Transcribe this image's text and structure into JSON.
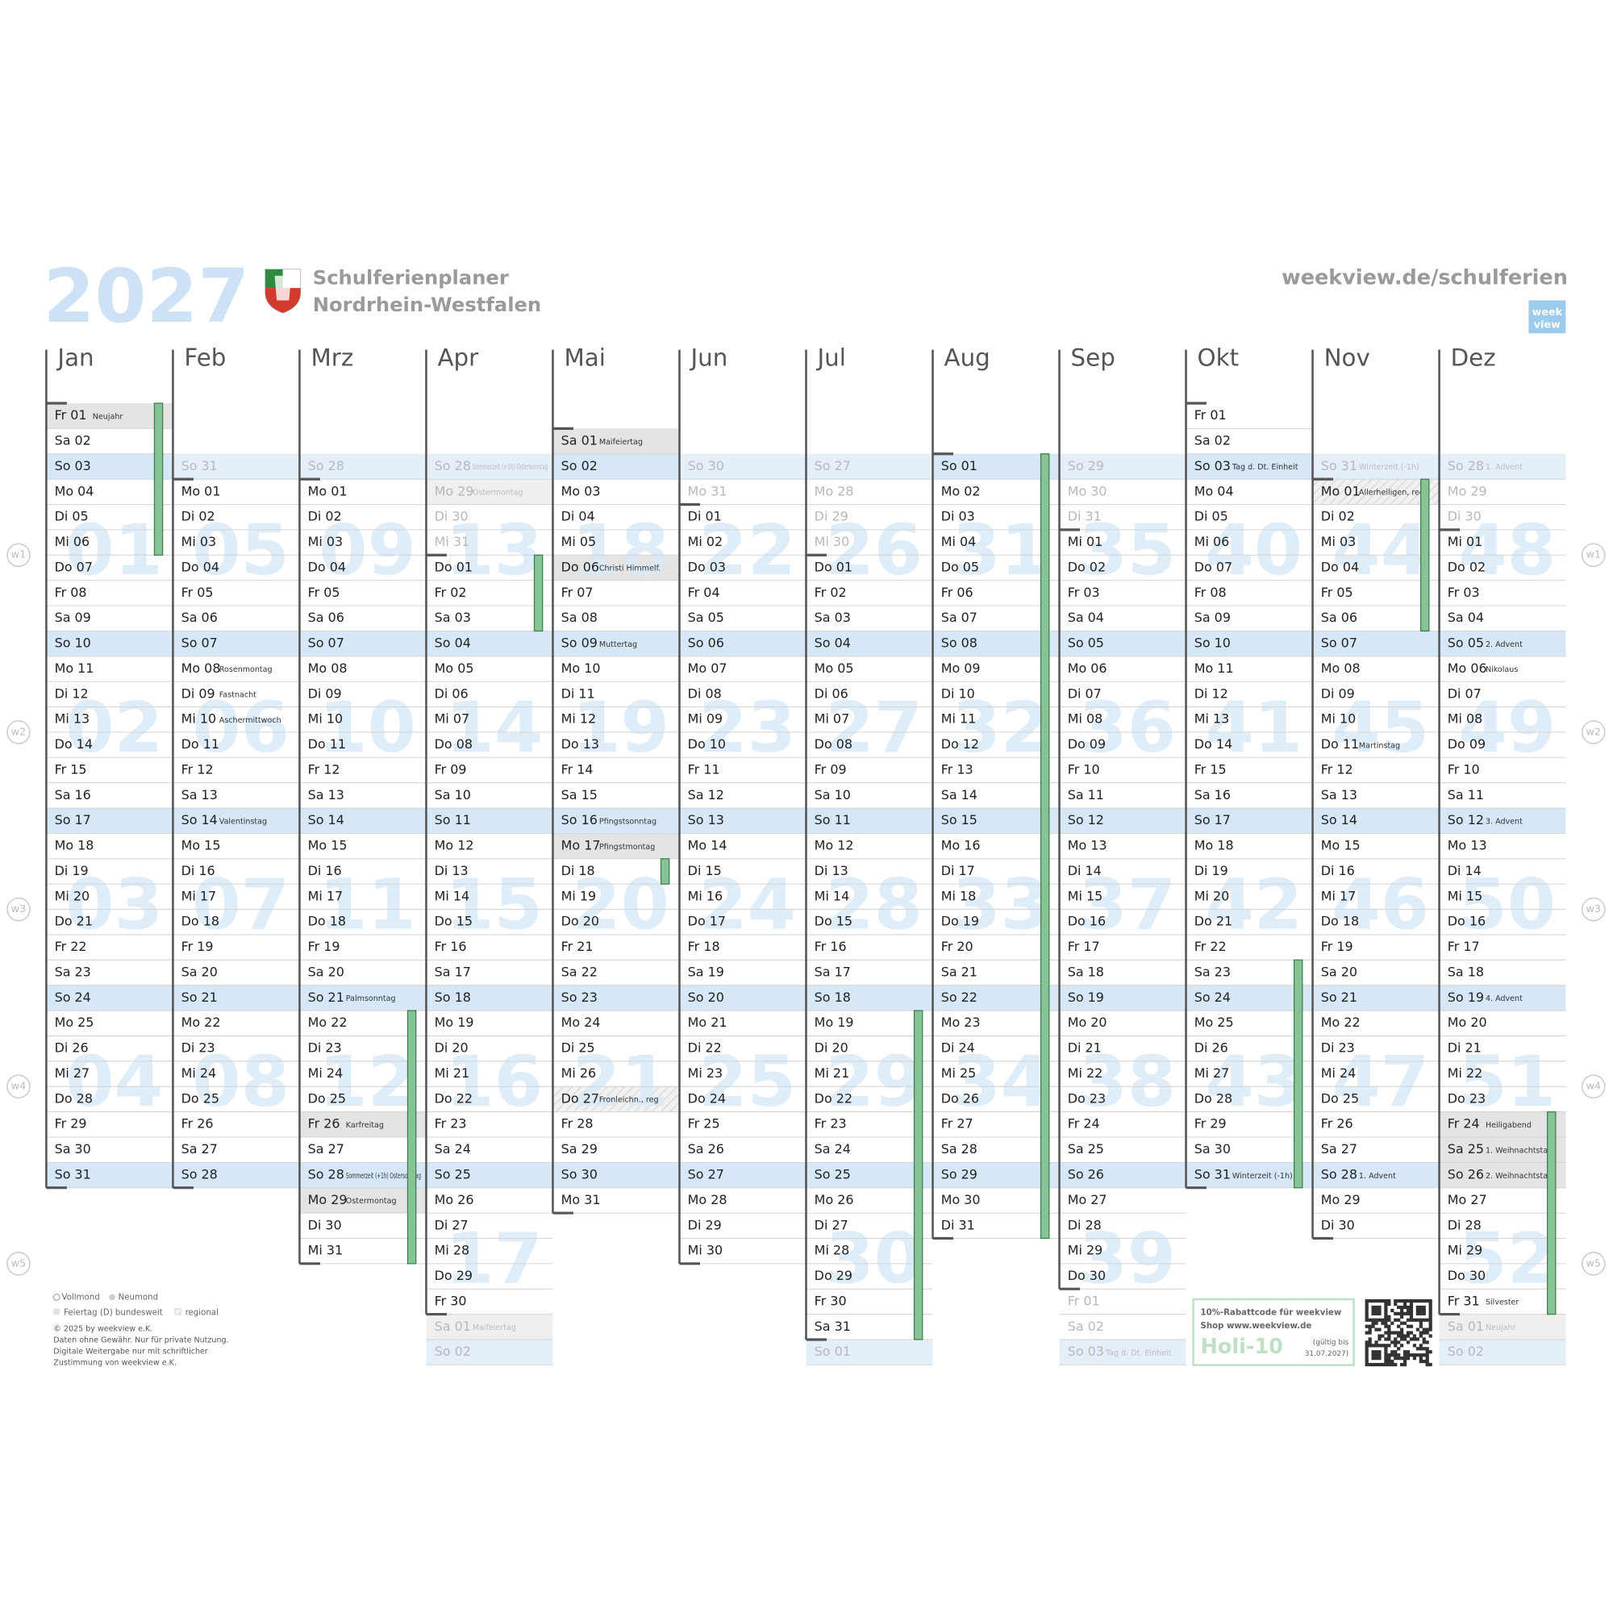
{
  "header": {
    "year": "2027",
    "title": "Schulferienplaner",
    "subtitle": "Nordrhein-Westfalen",
    "url": "weekview.de/schulferien",
    "logo": [
      "week",
      "view"
    ]
  },
  "side_labels": [
    "w1",
    "w2",
    "w3",
    "w4",
    "w5"
  ],
  "months": [
    {
      "name": "Jan",
      "before": [],
      "after": [],
      "weeks": [
        "01",
        "02",
        "03",
        "04"
      ],
      "vacations": [
        [
          1,
          6
        ]
      ],
      "days": [
        [
          "Fr 01",
          "Neujahr",
          "holiday"
        ],
        "Sa 02",
        "So 03",
        "Mo 04",
        "Di 05",
        "Mi 06",
        "Do 07",
        "Fr 08",
        "Sa 09",
        "So 10",
        "Mo 11",
        "Di 12",
        "Mi 13",
        "Do 14",
        "Fr 15",
        "Sa 16",
        "So 17",
        "Mo 18",
        "Di 19",
        "Mi 20",
        "Do 21",
        "Fr 22",
        "Sa 23",
        "So 24",
        "Mo 25",
        "Di 26",
        "Mi 27",
        "Do 28",
        "Fr 29",
        "Sa 30",
        "So 31"
      ]
    },
    {
      "name": "Feb",
      "before": [
        "So 31"
      ],
      "after": [],
      "weeks": [
        "05",
        "06",
        "07",
        "08"
      ],
      "vacations": [],
      "days": [
        "Mo 01",
        "Di 02",
        "Mi 03",
        "Do 04",
        "Fr 05",
        "Sa 06",
        "So 07",
        [
          "Mo 08",
          "Rosenmontag"
        ],
        [
          "Di 09",
          "Fastnacht"
        ],
        [
          "Mi 10",
          "Aschermittwoch"
        ],
        "Do 11",
        "Fr 12",
        "Sa 13",
        [
          "So 14",
          "Valentinstag"
        ],
        "Mo 15",
        "Di 16",
        "Mi 17",
        "Do 18",
        "Fr 19",
        "Sa 20",
        "So 21",
        "Mo 22",
        "Di 23",
        "Mi 24",
        "Do 25",
        "Fr 26",
        "Sa 27",
        "So 28"
      ]
    },
    {
      "name": "Mrz",
      "before": [
        "So 28"
      ],
      "after": [],
      "weeks": [
        "09",
        "10",
        "11",
        "12"
      ],
      "vacations": [
        [
          22,
          31
        ]
      ],
      "days": [
        "Mo 01",
        "Di 02",
        "Mi 03",
        "Do 04",
        "Fr 05",
        "Sa 06",
        "So 07",
        "Mo 08",
        "Di 09",
        "Mi 10",
        "Do 11",
        "Fr 12",
        "Sa 13",
        "So 14",
        "Mo 15",
        "Di 16",
        "Mi 17",
        "Do 18",
        "Fr 19",
        "Sa 20",
        [
          "So 21",
          "Palmsonntag"
        ],
        "Mo 22",
        "Di 23",
        "Mi 24",
        "Do 25",
        [
          "Fr 26",
          "Karfreitag",
          "holiday"
        ],
        "Sa 27",
        [
          "So 28",
          "Sommerzeit (+1h) Ostersonntag"
        ],
        [
          "Mo 29",
          "Ostermontag",
          "holiday"
        ],
        "Di 30",
        "Mi 31"
      ]
    },
    {
      "name": "Apr",
      "before": [
        [
          "So 28",
          "Sommerzeit (+1h) Ostersonntag"
        ],
        [
          "Mo 29",
          "Ostermontag",
          "holiday"
        ],
        "Di 30",
        "Mi 31"
      ],
      "after": [
        [
          "Sa 01",
          "Maifeiertag",
          "holiday"
        ],
        "So 02"
      ],
      "weeks": [
        "13",
        "14",
        "15",
        "16",
        "17"
      ],
      "vacations": [
        [
          1,
          3
        ]
      ],
      "days": [
        "Do 01",
        "Fr 02",
        "Sa 03",
        "So 04",
        "Mo 05",
        "Di 06",
        "Mi 07",
        "Do 08",
        "Fr 09",
        "Sa 10",
        "So 11",
        "Mo 12",
        "Di 13",
        "Mi 14",
        "Do 15",
        "Fr 16",
        "Sa 17",
        "So 18",
        "Mo 19",
        "Di 20",
        "Mi 21",
        "Do 22",
        "Fr 23",
        "Sa 24",
        "So 25",
        "Mo 26",
        "Di 27",
        "Mi 28",
        "Do 29",
        "Fr 30"
      ]
    },
    {
      "name": "Mai",
      "before": [],
      "after": [],
      "weeks": [
        "18",
        "19",
        "20",
        "21"
      ],
      "vacations": [
        [
          18,
          18
        ]
      ],
      "days": [
        [
          "Sa 01",
          "Maifeiertag",
          "holiday"
        ],
        "So 02",
        "Mo 03",
        "Di 04",
        "Mi 05",
        [
          "Do 06",
          "Christi Himmelf.",
          "holiday"
        ],
        "Fr 07",
        "Sa 08",
        [
          "So 09",
          "Muttertag"
        ],
        "Mo 10",
        "Di 11",
        "Mi 12",
        "Do 13",
        "Fr 14",
        "Sa 15",
        [
          "So 16",
          "Pfingstsonntag"
        ],
        [
          "Mo 17",
          "Pfingstmontag",
          "holiday"
        ],
        "Di 18",
        "Mi 19",
        "Do 20",
        "Fr 21",
        "Sa 22",
        "So 23",
        "Mo 24",
        "Di 25",
        "Mi 26",
        [
          "Do 27",
          "Fronleichn., reg",
          "regional"
        ],
        "Fr 28",
        "Sa 29",
        "So 30",
        "Mo 31"
      ]
    },
    {
      "name": "Jun",
      "before": [
        "So 30",
        "Mo 31"
      ],
      "after": [],
      "weeks": [
        "22",
        "23",
        "24",
        "25"
      ],
      "vacations": [],
      "days": [
        "Di 01",
        "Mi 02",
        "Do 03",
        "Fr 04",
        "Sa 05",
        "So 06",
        "Mo 07",
        "Di 08",
        "Mi 09",
        "Do 10",
        "Fr 11",
        "Sa 12",
        "So 13",
        "Mo 14",
        "Di 15",
        "Mi 16",
        "Do 17",
        "Fr 18",
        "Sa 19",
        "So 20",
        "Mo 21",
        "Di 22",
        "Mi 23",
        "Do 24",
        "Fr 25",
        "Sa 26",
        "So 27",
        "Mo 28",
        "Di 29",
        "Mi 30"
      ]
    },
    {
      "name": "Jul",
      "before": [
        "So 27",
        "Mo 28",
        "Di 29",
        "Mi 30"
      ],
      "after": [
        "So 01"
      ],
      "weeks": [
        "26",
        "27",
        "28",
        "29",
        "30"
      ],
      "vacations": [
        [
          19,
          31
        ]
      ],
      "days": [
        "Do 01",
        "Fr 02",
        "Sa 03",
        "So 04",
        "Mo 05",
        "Di 06",
        "Mi 07",
        "Do 08",
        "Fr 09",
        "Sa 10",
        "So 11",
        "Mo 12",
        "Di 13",
        "Mi 14",
        "Do 15",
        "Fr 16",
        "Sa 17",
        "So 18",
        "Mo 19",
        "Di 20",
        "Mi 21",
        "Do 22",
        "Fr 23",
        "Sa 24",
        "So 25",
        "Mo 26",
        "Di 27",
        "Mi 28",
        "Do 29",
        "Fr 30",
        "Sa 31"
      ]
    },
    {
      "name": "Aug",
      "before": [],
      "after": [],
      "weeks": [
        "31",
        "32",
        "33",
        "34"
      ],
      "vacations": [
        [
          1,
          31
        ]
      ],
      "days": [
        "So 01",
        "Mo 02",
        "Di 03",
        "Mi 04",
        "Do 05",
        "Fr 06",
        "Sa 07",
        "So 08",
        "Mo 09",
        "Di 10",
        "Mi 11",
        "Do 12",
        "Fr 13",
        "Sa 14",
        "So 15",
        "Mo 16",
        "Di 17",
        "Mi 18",
        "Do 19",
        "Fr 20",
        "Sa 21",
        "So 22",
        "Mo 23",
        "Di 24",
        "Mi 25",
        "Do 26",
        "Fr 27",
        "Sa 28",
        "So 29",
        "Mo 30",
        "Di 31"
      ]
    },
    {
      "name": "Sep",
      "before": [
        "So 29",
        "Mo 30",
        "Di 31"
      ],
      "after": [
        "Fr 01",
        "Sa 02",
        [
          "So 03",
          "Tag d. Dt. Einheit"
        ]
      ],
      "weeks": [
        "35",
        "36",
        "37",
        "38",
        "39"
      ],
      "vacations": [],
      "days": [
        "Mi 01",
        "Do 02",
        "Fr 03",
        "Sa 04",
        "So 05",
        "Mo 06",
        "Di 07",
        "Mi 08",
        "Do 09",
        "Fr 10",
        "Sa 11",
        "So 12",
        "Mo 13",
        "Di 14",
        "Mi 15",
        "Do 16",
        "Fr 17",
        "Sa 18",
        "So 19",
        "Mo 20",
        "Di 21",
        "Mi 22",
        "Do 23",
        "Fr 24",
        "Sa 25",
        "So 26",
        "Mo 27",
        "Di 28",
        "Mi 29",
        "Do 30"
      ]
    },
    {
      "name": "Okt",
      "before": [],
      "after": [],
      "weeks": [
        "40",
        "41",
        "42",
        "43"
      ],
      "vacations": [
        [
          23,
          31
        ]
      ],
      "days": [
        "Fr 01",
        "Sa 02",
        [
          "So 03",
          "Tag d. Dt. Einheit"
        ],
        "Mo 04",
        "Di 05",
        "Mi 06",
        "Do 07",
        "Fr 08",
        "Sa 09",
        "So 10",
        "Mo 11",
        "Di 12",
        "Mi 13",
        "Do 14",
        "Fr 15",
        "Sa 16",
        "So 17",
        "Mo 18",
        "Di 19",
        "Mi 20",
        "Do 21",
        "Fr 22",
        "Sa 23",
        "So 24",
        "Mo 25",
        "Di 26",
        "Mi 27",
        "Do 28",
        "Fr 29",
        "Sa 30",
        [
          "So 31",
          "Winterzeit (-1h)"
        ]
      ]
    },
    {
      "name": "Nov",
      "before": [
        [
          "So 31",
          "Winterzeit (-1h)"
        ]
      ],
      "after": [],
      "weeks": [
        "44",
        "45",
        "46",
        "47"
      ],
      "vacations": [
        [
          1,
          6
        ]
      ],
      "days": [
        [
          "Mo 01",
          "Allerheiligen, reg",
          "regional"
        ],
        "Di 02",
        "Mi 03",
        "Do 04",
        "Fr 05",
        "Sa 06",
        "So 07",
        "Mo 08",
        "Di 09",
        "Mi 10",
        [
          "Do 11",
          "Martinstag"
        ],
        "Fr 12",
        "Sa 13",
        "So 14",
        "Mo 15",
        "Di 16",
        "Mi 17",
        "Do 18",
        "Fr 19",
        "Sa 20",
        "So 21",
        "Mo 22",
        "Di 23",
        "Mi 24",
        "Do 25",
        "Fr 26",
        "Sa 27",
        [
          "So 28",
          "1. Advent"
        ],
        "Mo 29",
        "Di 30"
      ]
    },
    {
      "name": "Dez",
      "before": [
        [
          "So 28",
          "1. Advent"
        ],
        "Mo 29",
        "Di 30"
      ],
      "after": [
        [
          "Sa 01",
          "Neujahr",
          "holiday"
        ],
        "So 02"
      ],
      "weeks": [
        "48",
        "49",
        "50",
        "51",
        "52"
      ],
      "vacations": [
        [
          24,
          31
        ]
      ],
      "days": [
        "Mi 01",
        "Do 02",
        "Fr 03",
        "Sa 04",
        [
          "So 05",
          "2. Advent"
        ],
        [
          "Mo 06",
          "Nikolaus"
        ],
        "Di 07",
        "Mi 08",
        "Do 09",
        "Fr 10",
        "Sa 11",
        [
          "So 12",
          "3. Advent"
        ],
        "Mo 13",
        "Di 14",
        "Mi 15",
        "Do 16",
        "Fr 17",
        "Sa 18",
        [
          "So 19",
          "4. Advent"
        ],
        "Mo 20",
        "Di 21",
        "Mi 22",
        "Do 23",
        [
          "Fr 24",
          "Heiligabend",
          "holiday"
        ],
        [
          "Sa 25",
          "1. Weihnachtstag",
          "holiday"
        ],
        [
          "So 26",
          "2. Weihnachtstag",
          "holiday"
        ],
        "Mo 27",
        "Di 28",
        "Mi 29",
        "Do 30",
        [
          "Fr 31",
          "Silvester"
        ]
      ]
    }
  ],
  "legend": {
    "full_moon": "Vollmond",
    "new_moon": "Neumond",
    "holiday": "Feiertag (D) bundesweit",
    "regional": "regional",
    "copyright": [
      "© 2025 by weekview e.K.",
      "Daten ohne Gewähr. Nur für private Nutzung.",
      "Digitale Weitergabe nur mit schriftlicher",
      "Zustimmung von weekview e.K."
    ]
  },
  "promo": {
    "line1": "10%-Rabattcode für weekview",
    "line2": "Shop www.weekview.de",
    "code": "Holi-10",
    "validity": [
      "(gültig bis",
      "31.07.2027)"
    ]
  }
}
